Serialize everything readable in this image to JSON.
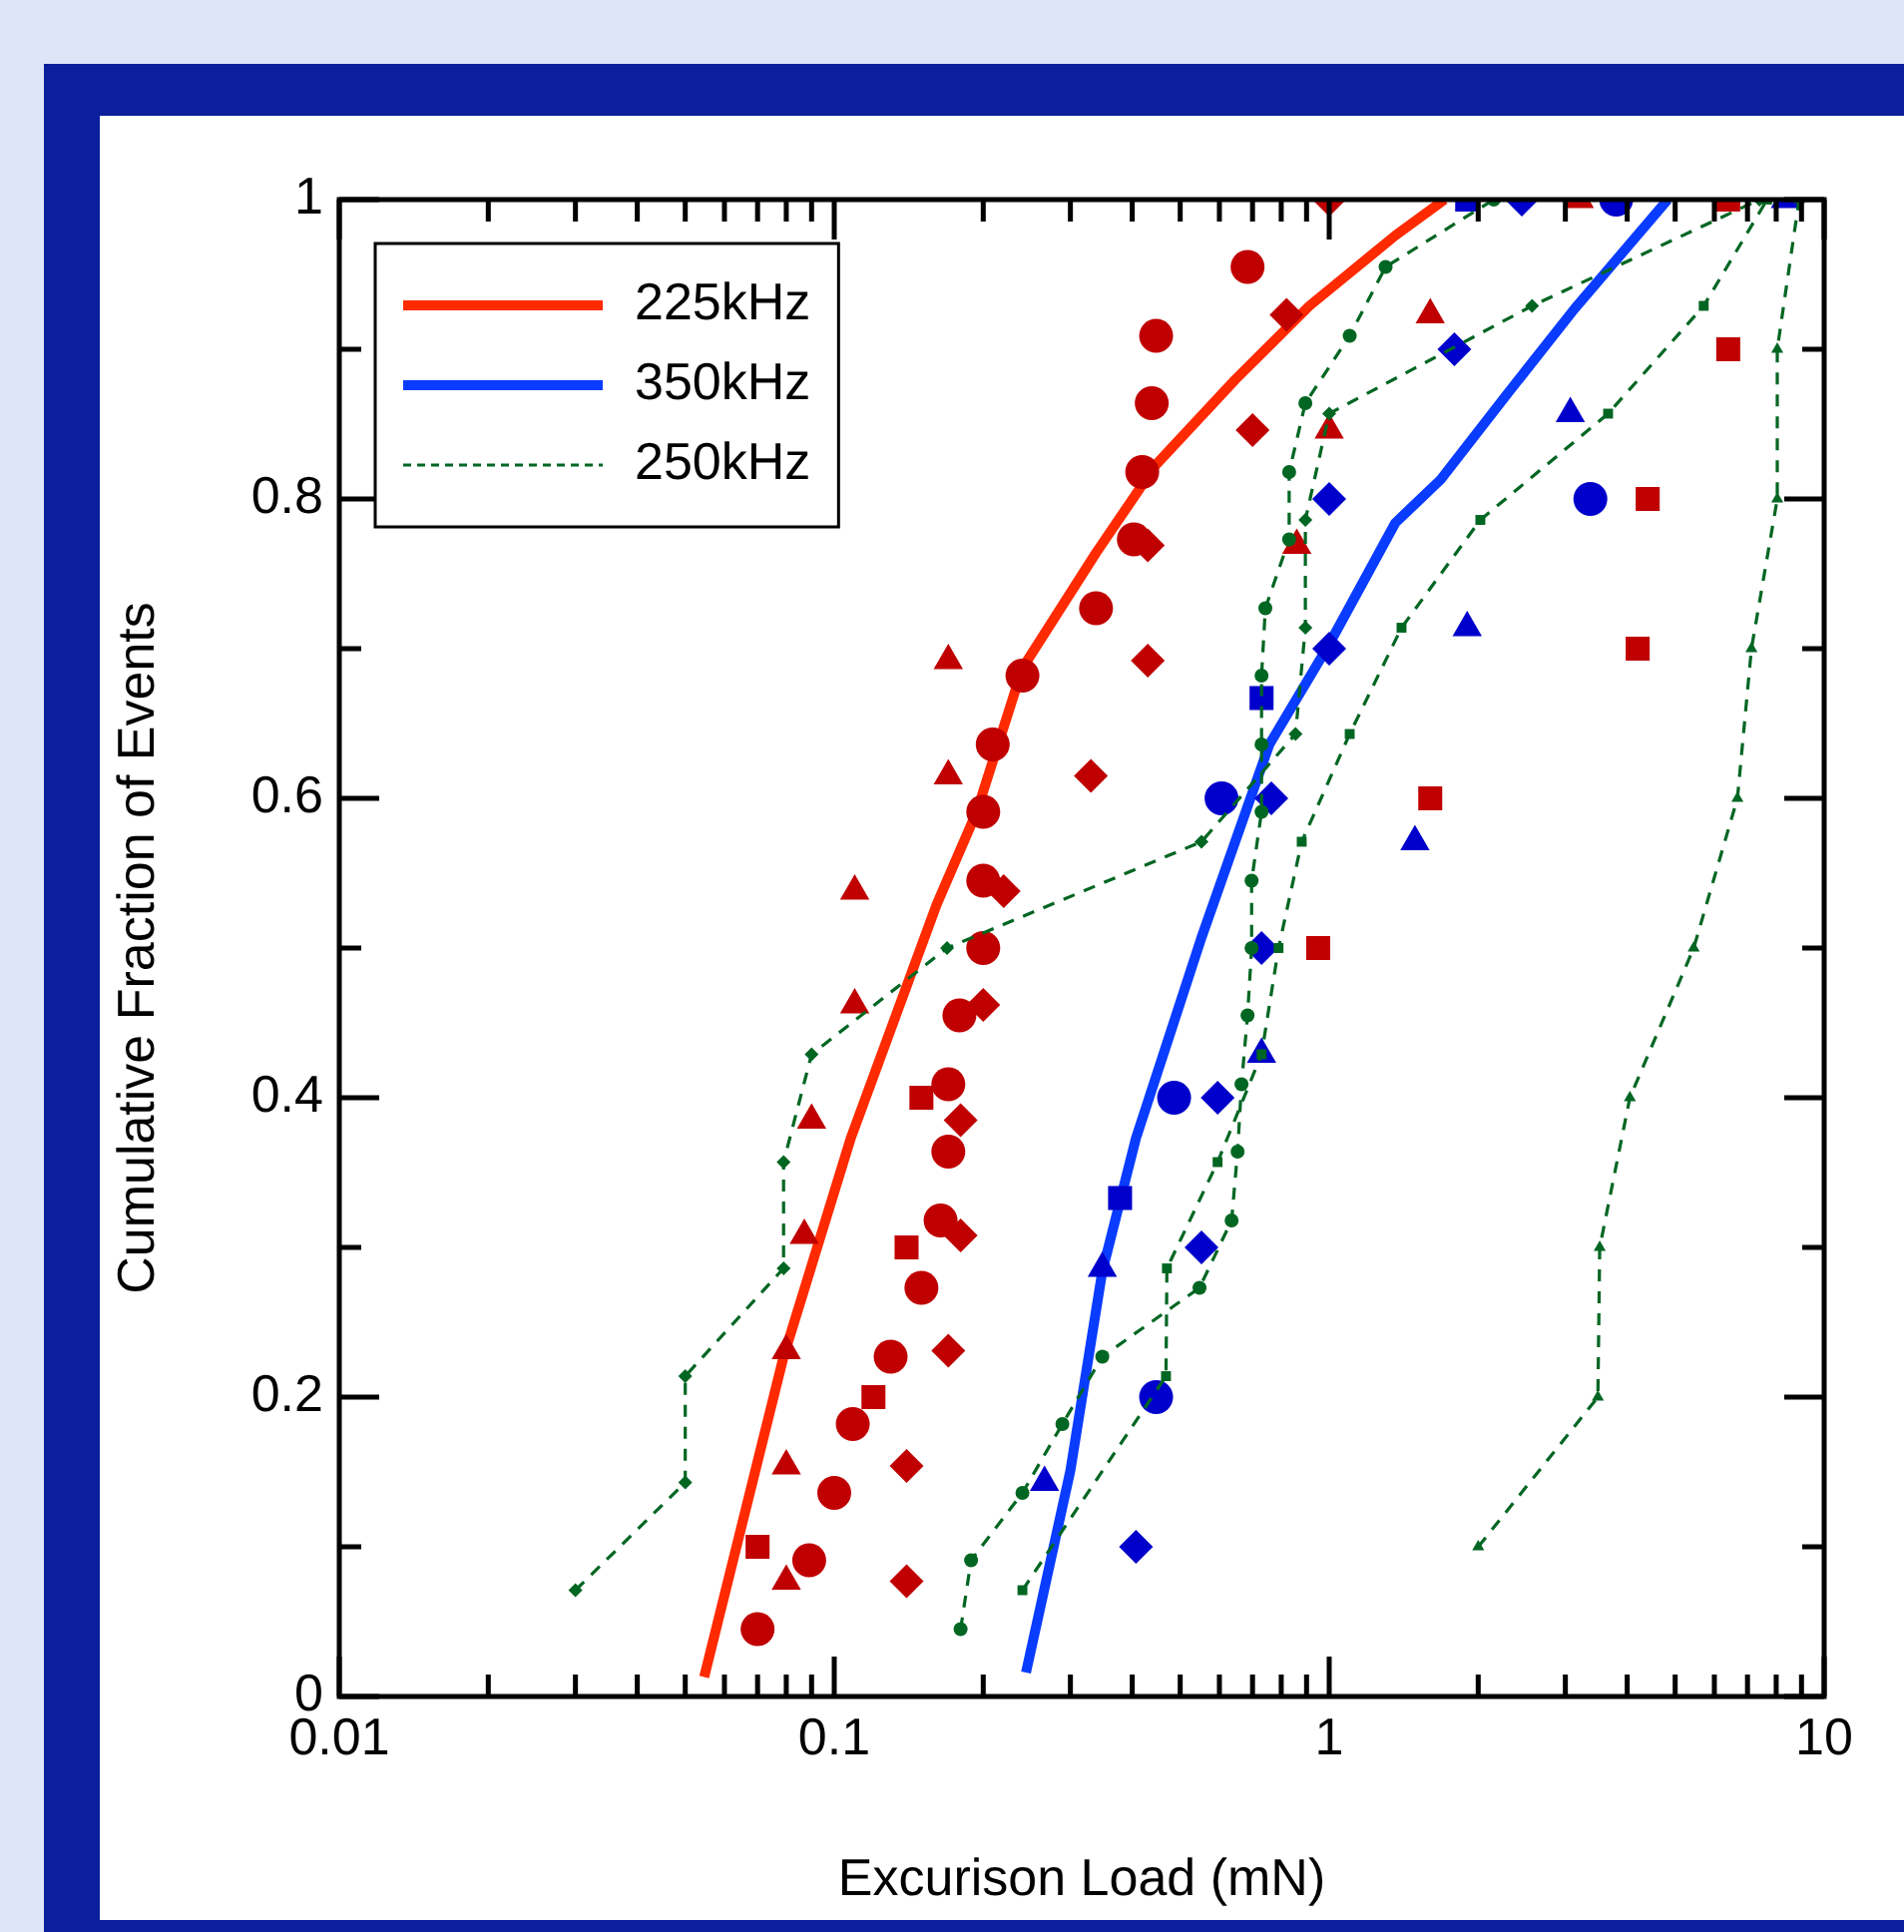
{
  "chart_data": {
    "type": "scatter",
    "xlabel": "Excurison Load (mN)",
    "ylabel": "Cumulative Fraction of Events",
    "log": "x",
    "grid": false,
    "legend": "top left",
    "xlim": [
      0.01,
      10
    ],
    "ylim": [
      0,
      1
    ],
    "xticks": [
      0.01,
      {
        "value": 0.02,
        "label": null
      },
      {
        "value": 0.03,
        "label": null
      },
      {
        "value": 0.04,
        "label": null
      },
      {
        "value": 0.05,
        "label": null
      },
      {
        "value": 0.06,
        "label": null
      },
      {
        "value": 0.07,
        "label": null
      },
      {
        "value": 0.08,
        "label": null
      },
      {
        "value": 0.09,
        "label": null
      },
      0.1,
      {
        "value": 0.2,
        "label": null
      },
      {
        "value": 0.3,
        "label": null
      },
      {
        "value": 0.4,
        "label": null
      },
      {
        "value": 0.5,
        "label": null
      },
      {
        "value": 0.6,
        "label": null
      },
      {
        "value": 0.7,
        "label": null
      },
      {
        "value": 0.8,
        "label": null
      },
      {
        "value": 0.9,
        "label": null
      },
      1,
      {
        "value": 2,
        "label": null
      },
      {
        "value": 3,
        "label": null
      },
      {
        "value": 4,
        "label": null
      },
      {
        "value": 5,
        "label": null
      },
      {
        "value": 6,
        "label": null
      },
      {
        "value": 7,
        "label": null
      },
      {
        "value": 8,
        "label": null
      },
      {
        "value": 9,
        "label": null
      },
      10
    ],
    "yticks": [
      0,
      {
        "value": 0.1,
        "label": null
      },
      0.2,
      {
        "value": 0.3,
        "label": null
      },
      0.4,
      {
        "value": 0.5,
        "label": null
      },
      0.6,
      {
        "value": 0.7,
        "label": null
      },
      0.8,
      {
        "value": 0.9,
        "label": null
      },
      1
    ],
    "series": [
      {
        "type": "line",
        "name": "225kHz",
        "color": "#ff2a00",
        "marker": "none",
        "line_style": "solid",
        "x": [
          0.0546,
          0.079,
          0.108,
          0.161,
          0.194,
          0.24,
          0.338,
          0.447,
          0.647,
          0.912,
          1.36,
          1.71
        ],
        "values": [
          0.013,
          0.227,
          0.373,
          0.529,
          0.591,
          0.687,
          0.764,
          0.823,
          0.88,
          0.929,
          0.976,
          1.0
        ]
      },
      {
        "type": "line",
        "name": "350kHz",
        "color": "#0a3cff",
        "marker": "none",
        "line_style": "solid",
        "x": [
          0.244,
          0.3,
          0.348,
          0.407,
          0.552,
          0.757,
          1.0,
          1.36,
          1.68,
          2.3,
          3.13,
          4.83
        ],
        "values": [
          0.016,
          0.151,
          0.284,
          0.373,
          0.507,
          0.636,
          0.703,
          0.784,
          0.813,
          0.871,
          0.927,
          1.0
        ]
      },
      {
        "type": "line",
        "name": "250kHz",
        "color": "#006622",
        "marker": "diamond",
        "line_style": "dashed",
        "x": [
          0.03,
          0.05,
          0.05,
          0.079,
          0.079,
          0.09,
          0.169,
          0.552,
          0.855,
          0.895,
          0.895,
          1.0,
          2.57,
          7.4
        ],
        "values": [
          0.071,
          0.143,
          0.214,
          0.286,
          0.357,
          0.429,
          0.5,
          0.571,
          0.643,
          0.714,
          0.786,
          0.857,
          0.929,
          1.0
        ]
      },
      {
        "type": "line",
        "color": "#006622",
        "marker": "circle",
        "line_style": "dashed",
        "x": [
          0.18,
          0.189,
          0.24,
          0.289,
          0.348,
          0.547,
          0.635,
          0.653,
          0.665,
          0.684,
          0.697,
          0.697,
          0.73,
          0.73,
          0.73,
          0.743,
          0.83,
          0.83,
          0.895,
          1.1,
          1.3,
          2.15
        ],
        "values": [
          0.045,
          0.091,
          0.136,
          0.182,
          0.227,
          0.273,
          0.318,
          0.364,
          0.409,
          0.455,
          0.5,
          0.545,
          0.591,
          0.636,
          0.682,
          0.727,
          0.773,
          0.818,
          0.864,
          0.909,
          0.955,
          1.0
        ]
      },
      {
        "type": "line",
        "color": "#006622",
        "marker": "square",
        "line_style": "dashed",
        "x": [
          0.24,
          0.468,
          0.47,
          0.595,
          0.73,
          0.79,
          0.88,
          1.1,
          1.4,
          2.02,
          3.66,
          5.71,
          7.67
        ],
        "values": [
          0.071,
          0.214,
          0.286,
          0.357,
          0.429,
          0.5,
          0.571,
          0.643,
          0.714,
          0.786,
          0.857,
          0.929,
          1.0
        ]
      },
      {
        "type": "line",
        "color": "#006622",
        "marker": "triangle",
        "line_style": "dashed",
        "x": [
          2.0,
          3.49,
          3.52,
          4.05,
          5.45,
          6.68,
          7.13,
          8.04,
          8.04,
          8.9
        ],
        "values": [
          0.1,
          0.2,
          0.3,
          0.4,
          0.5,
          0.6,
          0.7,
          0.8,
          0.9,
          1.0
        ]
      },
      {
        "color": "#c00000",
        "marker": "circle",
        "x": [
          0.07,
          0.089,
          0.1,
          0.109,
          0.13,
          0.15,
          0.164,
          0.17,
          0.17,
          0.179,
          0.2,
          0.2,
          0.2,
          0.209,
          0.24,
          0.338,
          0.403,
          0.419,
          0.438,
          0.447,
          0.684
        ],
        "values": [
          0.045,
          0.091,
          0.136,
          0.182,
          0.227,
          0.273,
          0.318,
          0.364,
          0.409,
          0.455,
          0.5,
          0.545,
          0.591,
          0.636,
          0.682,
          0.727,
          0.773,
          0.818,
          0.864,
          0.909,
          0.955
        ]
      },
      {
        "color": "#c00000",
        "marker": "triangle",
        "x": [
          0.08,
          0.08,
          0.08,
          0.087,
          0.09,
          0.11,
          0.11,
          0.17,
          0.17,
          0.86,
          1.0,
          1.6,
          3.2
        ],
        "values": [
          0.077,
          0.154,
          0.231,
          0.308,
          0.385,
          0.462,
          0.538,
          0.615,
          0.692,
          0.769,
          0.846,
          0.923,
          1.0
        ]
      },
      {
        "color": "#c00000",
        "marker": "square",
        "x": [
          0.07,
          0.12,
          0.14,
          0.15,
          0.95,
          1.6,
          4.2,
          4.4,
          6.4,
          6.4
        ],
        "values": [
          0.1,
          0.2,
          0.3,
          0.4,
          0.5,
          0.6,
          0.7,
          0.8,
          0.9,
          1.0
        ]
      },
      {
        "color": "#c00000",
        "marker": "diamond",
        "x": [
          0.14,
          0.14,
          0.17,
          0.18,
          0.18,
          0.2,
          0.22,
          0.33,
          0.43,
          0.43,
          0.7,
          0.82,
          1.0
        ],
        "values": [
          0.077,
          0.154,
          0.231,
          0.308,
          0.385,
          0.462,
          0.538,
          0.615,
          0.692,
          0.769,
          0.846,
          0.923,
          1.0
        ]
      },
      {
        "color": "#0000cc",
        "marker": "circle",
        "x": [
          0.447,
          0.486,
          0.606,
          3.37,
          3.8
        ],
        "values": [
          0.2,
          0.4,
          0.6,
          0.8,
          1.0
        ]
      },
      {
        "color": "#0000cc",
        "marker": "square",
        "x": [
          0.378,
          0.73,
          1.9
        ],
        "values": [
          0.333,
          0.667,
          1.0
        ]
      },
      {
        "color": "#0000cc",
        "marker": "triangle",
        "x": [
          0.266,
          0.348,
          0.73,
          1.49,
          1.9,
          3.07,
          8.35
        ],
        "values": [
          0.143,
          0.286,
          0.429,
          0.571,
          0.714,
          0.857,
          1.0
        ]
      },
      {
        "color": "#0000cc",
        "marker": "diamond",
        "x": [
          0.407,
          0.552,
          0.595,
          0.73,
          0.764,
          1.0,
          1.0,
          1.79,
          2.45
        ],
        "values": [
          0.1,
          0.3,
          0.4,
          0.5,
          0.6,
          0.7,
          0.8,
          0.9,
          1.0
        ]
      }
    ]
  }
}
